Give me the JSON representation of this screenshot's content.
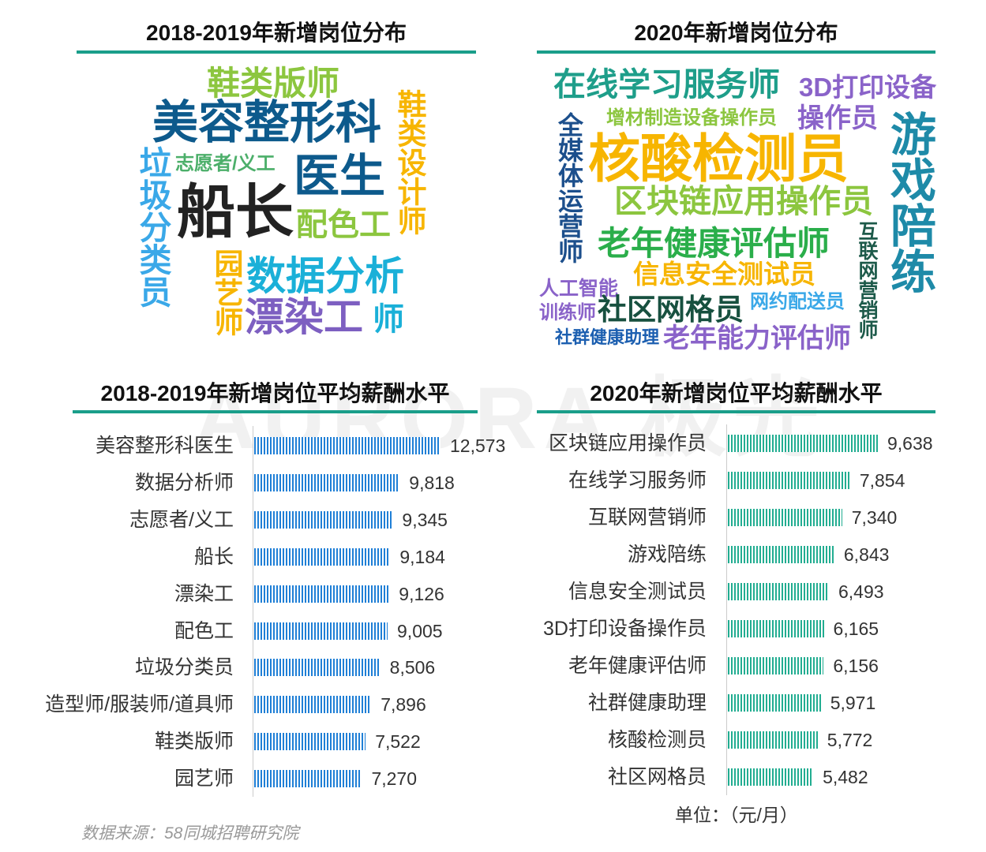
{
  "titles": {
    "cloud_left": "2018-2019年新增岗位分布",
    "cloud_right": "2020年新增岗位分布",
    "bars_left": "2018-2019年新增岗位平均薪酬水平",
    "bars_right": "2020年新增岗位平均薪酬水平"
  },
  "watermark": "AURORA 极光",
  "colors": {
    "accent_line": "#1a9e8a",
    "bar_left": "#1f7fd6",
    "bar_right": "#22ad91"
  },
  "cloud_left_words": [
    "鞋类版师",
    "美容整形科",
    "鞋类设计师",
    "垃圾分类员",
    "志愿者/义工",
    "医生",
    "船长",
    "配色工",
    "园艺师",
    "数据分析",
    "漂染工",
    "师"
  ],
  "cloud_right_words": [
    "在线学习服务师",
    "3D打印设备",
    "增材制造设备操作员",
    "操作员",
    "全媒体运营师",
    "游戏陪练",
    "核酸检测员",
    "区块链应用操作员",
    "互联网营销师",
    "老年健康评估师",
    "信息安全测试员",
    "人工智能",
    "训练师",
    "社区网格员",
    "网约配送员",
    "社群健康助理",
    "老年能力评估师"
  ],
  "chart_data": [
    {
      "type": "bar",
      "orientation": "horizontal",
      "title": "2018-2019年新增岗位平均薪酬水平",
      "categories": [
        "美容整形科医生",
        "数据分析师",
        "志愿者/义工",
        "船长",
        "漂染工",
        "配色工",
        "垃圾分类员",
        "造型师/服装师/道具师",
        "鞋类版师",
        "园艺师"
      ],
      "values": [
        12573,
        9818,
        9345,
        9184,
        9126,
        9005,
        8506,
        7896,
        7522,
        7270
      ],
      "xlim": [
        0,
        12573
      ],
      "grid": false,
      "color": "#1f7fd6"
    },
    {
      "type": "bar",
      "orientation": "horizontal",
      "title": "2020年新增岗位平均薪酬水平",
      "categories": [
        "区块链应用操作员",
        "在线学习服务师",
        "互联网营销师",
        "游戏陪练",
        "信息安全测试员",
        "3D打印设备操作员",
        "老年健康评估师",
        "社群健康助理",
        "核酸检测员",
        "社区网格员"
      ],
      "values": [
        9638,
        7854,
        7340,
        6843,
        6493,
        6165,
        6156,
        5971,
        5772,
        5482
      ],
      "xlim": [
        0,
        9638
      ],
      "grid": false,
      "color": "#22ad91"
    }
  ],
  "footer": {
    "source": "数据来源：58同城招聘研究院",
    "unit": "单位：（元/月）"
  }
}
